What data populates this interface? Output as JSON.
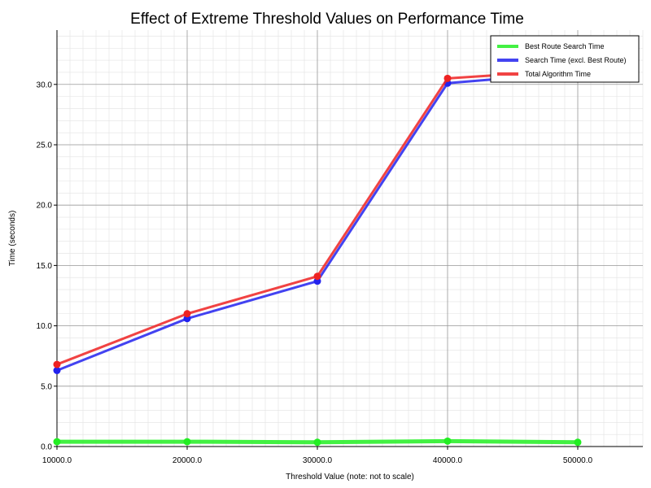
{
  "chart_data": {
    "type": "line",
    "title": "Effect of Extreme Threshold Values on Performance Time",
    "xlabel": "Threshold Value (note: not to scale)",
    "ylabel": "Time (seconds)",
    "xlim": [
      10000,
      55000
    ],
    "ylim": [
      0,
      34.5
    ],
    "x_ticks": [
      "10000.0",
      "20000.0",
      "30000.0",
      "40000.0",
      "50000.0"
    ],
    "y_ticks": [
      "0.0",
      "5.0",
      "10.0",
      "15.0",
      "20.0",
      "25.0",
      "30.0"
    ],
    "grid": true,
    "legend_position": "top-right",
    "x": [
      10000,
      20000,
      30000,
      40000,
      50000
    ],
    "series": [
      {
        "name": "Best Route Search Time",
        "color": "#22ee22",
        "values": [
          0.4,
          0.4,
          0.35,
          0.45,
          0.35
        ]
      },
      {
        "name": "Search Time (excl. Best Route)",
        "color": "#2222ee",
        "values": [
          6.3,
          10.6,
          13.7,
          30.1,
          31.0
        ]
      },
      {
        "name": "Total Algorithm Time",
        "color": "#ee2222",
        "values": [
          6.8,
          11.0,
          14.1,
          30.5,
          31.2
        ]
      }
    ]
  }
}
